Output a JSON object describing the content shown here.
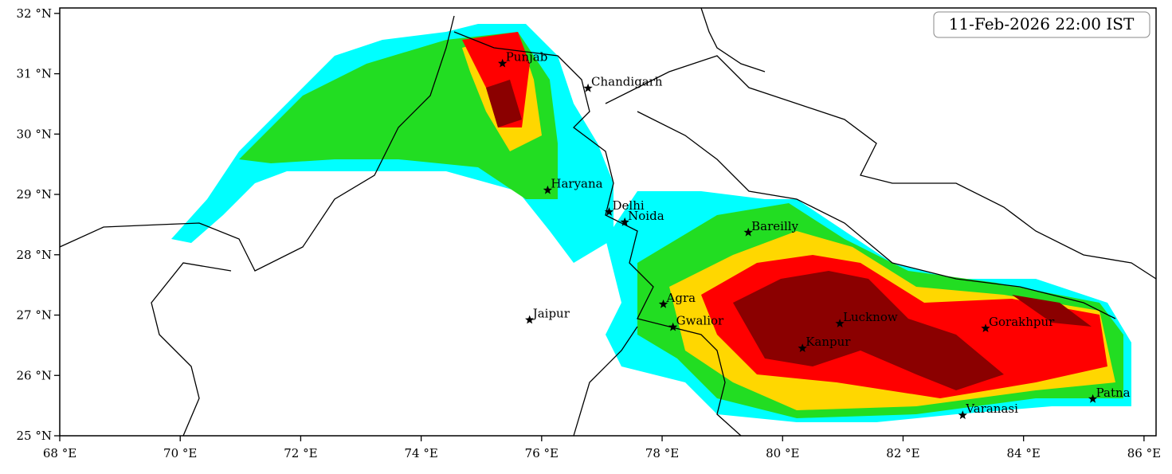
{
  "map": {
    "timestamp": "11-Feb-2026 22:00 IST",
    "xlim": [
      68,
      86.2
    ],
    "ylim": [
      25,
      32.09
    ],
    "xticks": [
      {
        "value": 68,
        "label": "68 °E"
      },
      {
        "value": 70,
        "label": "70 °E"
      },
      {
        "value": 72,
        "label": "72 °E"
      },
      {
        "value": 74,
        "label": "74 °E"
      },
      {
        "value": 76,
        "label": "76 °E"
      },
      {
        "value": 78,
        "label": "78 °E"
      },
      {
        "value": 80,
        "label": "80 °E"
      },
      {
        "value": 82,
        "label": "82 °E"
      },
      {
        "value": 84,
        "label": "84 °E"
      },
      {
        "value": 86,
        "label": "86 °E"
      }
    ],
    "yticks": [
      {
        "value": 25,
        "label": "25 °N"
      },
      {
        "value": 26,
        "label": "26 °N"
      },
      {
        "value": 27,
        "label": "27 °N"
      },
      {
        "value": 28,
        "label": "28 °N"
      },
      {
        "value": 29,
        "label": "29 °N"
      },
      {
        "value": 30,
        "label": "30 °N"
      },
      {
        "value": 31,
        "label": "31 °N"
      },
      {
        "value": 32,
        "label": "32 °N"
      }
    ],
    "cities": [
      {
        "name": "Punjab",
        "lon": 75.35,
        "lat": 31.17
      },
      {
        "name": "Chandigarh",
        "lon": 76.77,
        "lat": 30.76
      },
      {
        "name": "Haryana",
        "lon": 76.1,
        "lat": 29.07
      },
      {
        "name": "Delhi",
        "lon": 77.12,
        "lat": 28.71
      },
      {
        "name": "Noida",
        "lon": 77.38,
        "lat": 28.54
      },
      {
        "name": "Bareilly",
        "lon": 79.43,
        "lat": 28.37
      },
      {
        "name": "Agra",
        "lon": 78.02,
        "lat": 27.18
      },
      {
        "name": "Jaipur",
        "lon": 75.8,
        "lat": 26.92
      },
      {
        "name": "Gwalior",
        "lon": 78.18,
        "lat": 26.8
      },
      {
        "name": "Lucknow",
        "lon": 80.95,
        "lat": 26.86
      },
      {
        "name": "Kanpur",
        "lon": 80.33,
        "lat": 26.45
      },
      {
        "name": "Gorakhpur",
        "lon": 83.37,
        "lat": 26.78
      },
      {
        "name": "Varanasi",
        "lon": 82.99,
        "lat": 25.34
      },
      {
        "name": "Patna",
        "lon": 85.15,
        "lat": 25.61
      }
    ]
  }
}
